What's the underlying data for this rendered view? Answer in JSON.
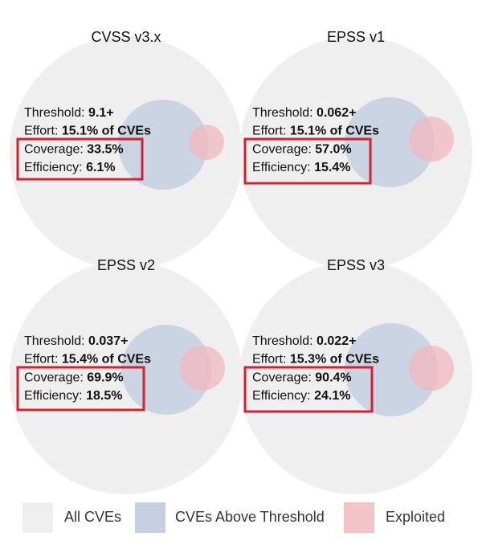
{
  "panels": [
    {
      "title": "CVSS v3.x",
      "lines": [
        {
          "label": "Threshold:",
          "value": "9.1+"
        },
        {
          "label": "Effort:",
          "value": "15.1% of CVEs"
        },
        {
          "label": "Coverage:",
          "value": "33.5%"
        },
        {
          "label": "Efficiency:",
          "value": "6.1%"
        }
      ]
    },
    {
      "title": "EPSS v1",
      "lines": [
        {
          "label": "Threshold:",
          "value": "0.062+"
        },
        {
          "label": "Effort:",
          "value": "15.1% of CVEs"
        },
        {
          "label": "Coverage:",
          "value": "57.0%"
        },
        {
          "label": "Efficiency:",
          "value": "15.4%"
        }
      ]
    },
    {
      "title": "EPSS v2",
      "lines": [
        {
          "label": "Threshold:",
          "value": "0.037+"
        },
        {
          "label": "Effort:",
          "value": "15.4% of CVEs"
        },
        {
          "label": "Coverage:",
          "value": "69.9%"
        },
        {
          "label": "Efficiency:",
          "value": "18.5%"
        }
      ]
    },
    {
      "title": "EPSS v3",
      "lines": [
        {
          "label": "Threshold:",
          "value": "0.022+"
        },
        {
          "label": "Effort:",
          "value": "15.3% of CVEs"
        },
        {
          "label": "Coverage:",
          "value": "90.4%"
        },
        {
          "label": "Efficiency:",
          "value": "24.1%"
        }
      ]
    }
  ],
  "legend": [
    "All CVEs",
    "CVEs Above Threshold",
    "Exploited"
  ]
}
